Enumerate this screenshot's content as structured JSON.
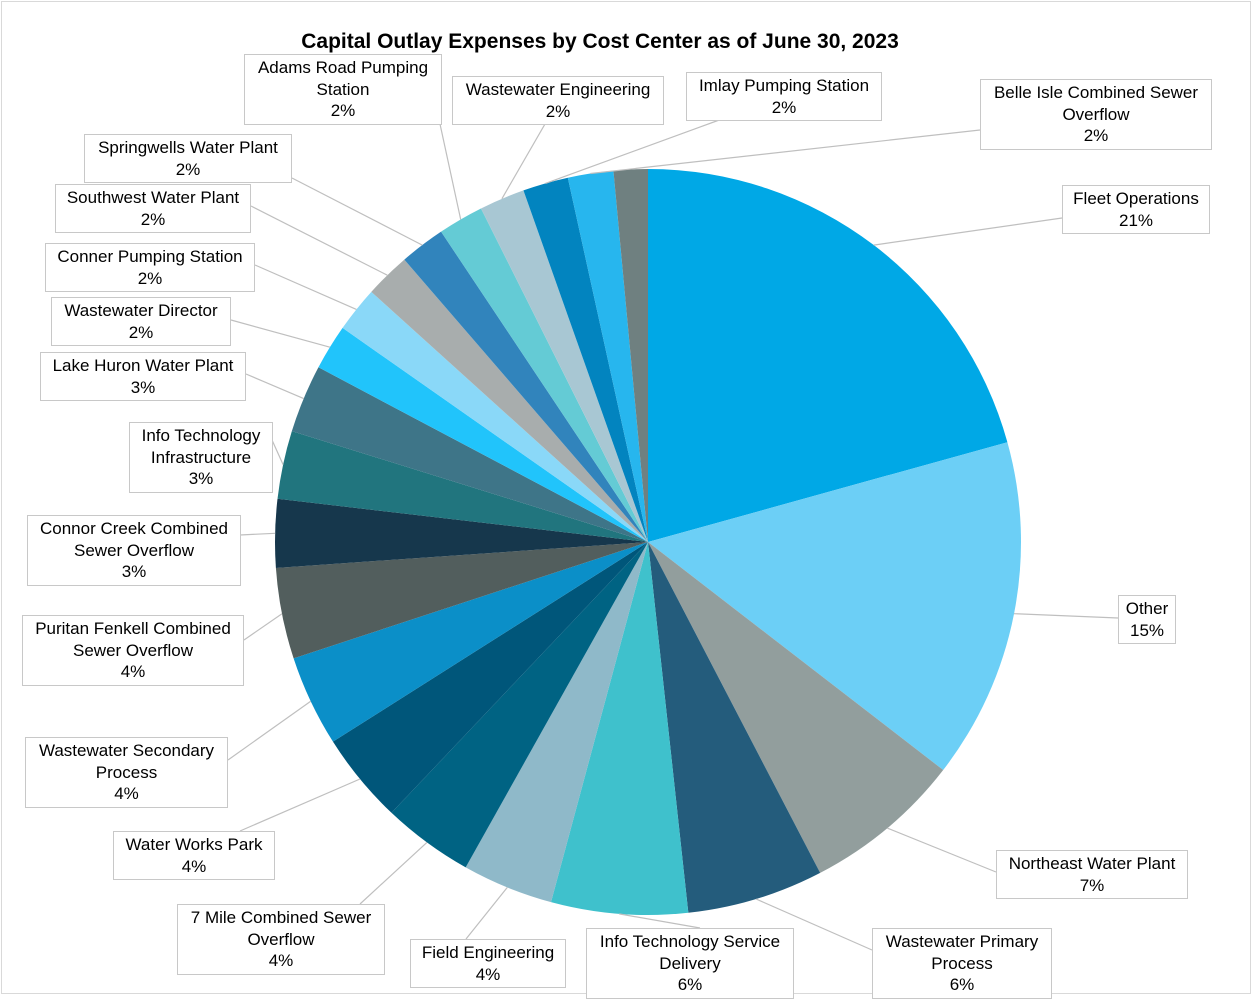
{
  "chart_data": {
    "type": "pie",
    "title": "Capital Outlay Expenses by Cost Center as of June 30, 2023",
    "slices": [
      {
        "name": "Fleet Operations",
        "label_lines": [
          "Fleet Operations"
        ],
        "value": 21,
        "pct_label": "21%",
        "color": "#00a8e6"
      },
      {
        "name": "Other",
        "label_lines": [
          "Other"
        ],
        "value": 15,
        "pct_label": "15%",
        "color": "#6ccff6"
      },
      {
        "name": "Northeast Water Plant",
        "label_lines": [
          "Northeast Water Plant"
        ],
        "value": 7,
        "pct_label": "7%",
        "color": "#929e9d"
      },
      {
        "name": "Wastewater Primary Process",
        "label_lines": [
          "Wastewater Primary",
          "Process"
        ],
        "value": 6,
        "pct_label": "6%",
        "color": "#245c7c"
      },
      {
        "name": "Info Technology Service Delivery",
        "label_lines": [
          "Info Technology Service",
          "Delivery"
        ],
        "value": 6,
        "pct_label": "6%",
        "color": "#3fc1cc"
      },
      {
        "name": "Field Engineering",
        "label_lines": [
          "Field Engineering"
        ],
        "value": 4,
        "pct_label": "4%",
        "color": "#8fb9c9"
      },
      {
        "name": "7 Mile Combined Sewer Overflow",
        "label_lines": [
          "7 Mile Combined Sewer",
          "Overflow"
        ],
        "value": 4,
        "pct_label": "4%",
        "color": "#006383"
      },
      {
        "name": "Water Works Park",
        "label_lines": [
          "Water Works Park"
        ],
        "value": 4,
        "pct_label": "4%",
        "color": "#00567a"
      },
      {
        "name": "Wastewater Secondary Process",
        "label_lines": [
          "Wastewater Secondary",
          "Process"
        ],
        "value": 4,
        "pct_label": "4%",
        "color": "#0b8fc8"
      },
      {
        "name": "Puritan Fenkell Combined Sewer Overflow",
        "label_lines": [
          "Puritan Fenkell Combined",
          "Sewer Overflow"
        ],
        "value": 4,
        "pct_label": "4%",
        "color": "#525e5d"
      },
      {
        "name": "Connor Creek Combined Sewer Overflow",
        "label_lines": [
          "Connor Creek Combined",
          "Sewer Overflow"
        ],
        "value": 3,
        "pct_label": "3%",
        "color": "#16374c"
      },
      {
        "name": "Info Technology Infrastructure",
        "label_lines": [
          "Info Technology",
          "Infrastructure"
        ],
        "value": 3,
        "pct_label": "3%",
        "color": "#21757e"
      },
      {
        "name": "Lake Huron Water Plant",
        "label_lines": [
          "Lake Huron Water Plant"
        ],
        "value": 3,
        "pct_label": "3%",
        "color": "#3e7588"
      },
      {
        "name": "Wastewater Director",
        "label_lines": [
          "Wastewater Director"
        ],
        "value": 2,
        "pct_label": "2%",
        "color": "#21c4fb"
      },
      {
        "name": "Conner Pumping Station",
        "label_lines": [
          "Conner Pumping Station"
        ],
        "value": 2,
        "pct_label": "2%",
        "color": "#8ad8f8"
      },
      {
        "name": "Southwest Water Plant",
        "label_lines": [
          "Southwest Water Plant"
        ],
        "value": 2,
        "pct_label": "2%",
        "color": "#a8adad"
      },
      {
        "name": "Springwells Water Plant",
        "label_lines": [
          "Springwells Water Plant"
        ],
        "value": 2,
        "pct_label": "2%",
        "color": "#3184bc"
      },
      {
        "name": "Adams Road Pumping Station",
        "label_lines": [
          "Adams Road Pumping",
          "Station"
        ],
        "value": 2,
        "pct_label": "2%",
        "color": "#64cbd5"
      },
      {
        "name": "Wastewater Engineering",
        "label_lines": [
          "Wastewater Engineering"
        ],
        "value": 2,
        "pct_label": "2%",
        "color": "#a8c7d3"
      },
      {
        "name": "Imlay Pumping Station",
        "label_lines": [
          "Imlay Pumping Station"
        ],
        "value": 2,
        "pct_label": "2%",
        "color": "#0284bf"
      },
      {
        "name": "Belle Isle Combined Sewer Overflow",
        "label_lines": [
          "Belle Isle Combined Sewer",
          "Overflow"
        ],
        "value": 2,
        "pct_label": "2%",
        "color": "#27b6ee"
      },
      {
        "name": "",
        "label_lines": [],
        "value": 1.5,
        "pct_label": "",
        "color": "#6f8080"
      }
    ]
  }
}
